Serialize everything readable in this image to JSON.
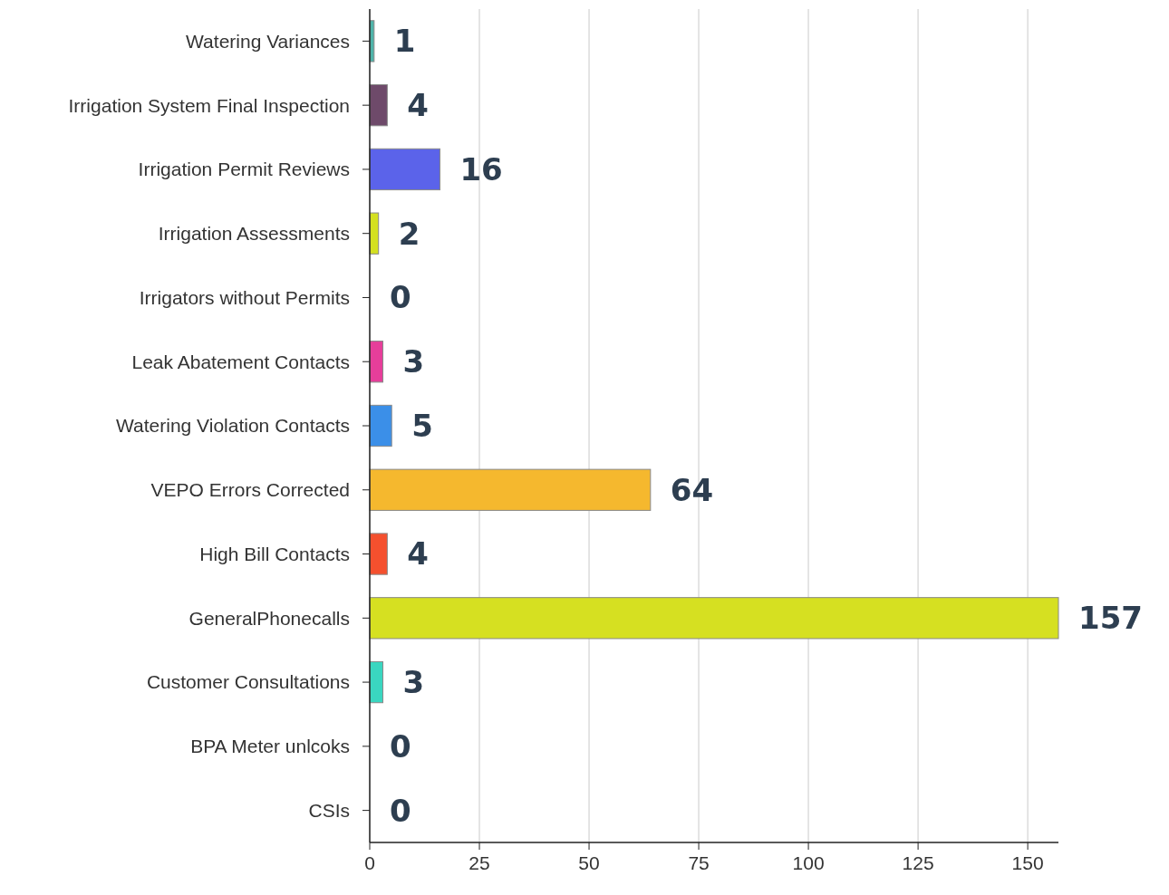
{
  "chart_data": {
    "type": "bar",
    "orientation": "horizontal",
    "categories": [
      "Watering Variances",
      "Irrigation System Final Inspection",
      "Irrigation Permit Reviews",
      "Irrigation Assessments",
      "Irrigators without Permits",
      "Leak Abatement Contacts",
      "Watering Violation Contacts",
      "VEPO Errors Corrected",
      "High Bill Contacts",
      "GeneralPhonecalls",
      "Customer Consultations",
      "BPA Meter unlcoks",
      "CSIs"
    ],
    "values": [
      1,
      4,
      16,
      2,
      0,
      3,
      5,
      64,
      4,
      157,
      3,
      0,
      0
    ],
    "colors": [
      "#4fb3a9",
      "#6e4a6a",
      "#5b63ea",
      "#d4e021",
      "#8e8e8e",
      "#e63e9a",
      "#3b8fe8",
      "#f5b82e",
      "#f5502e",
      "#d6e021",
      "#3ad6c0",
      "#8e8e8e",
      "#8e8e8e"
    ],
    "xlim": [
      0,
      157
    ],
    "xticks": [
      0,
      25,
      50,
      75,
      100,
      125,
      150
    ],
    "grid": "x",
    "data_labels": true
  }
}
